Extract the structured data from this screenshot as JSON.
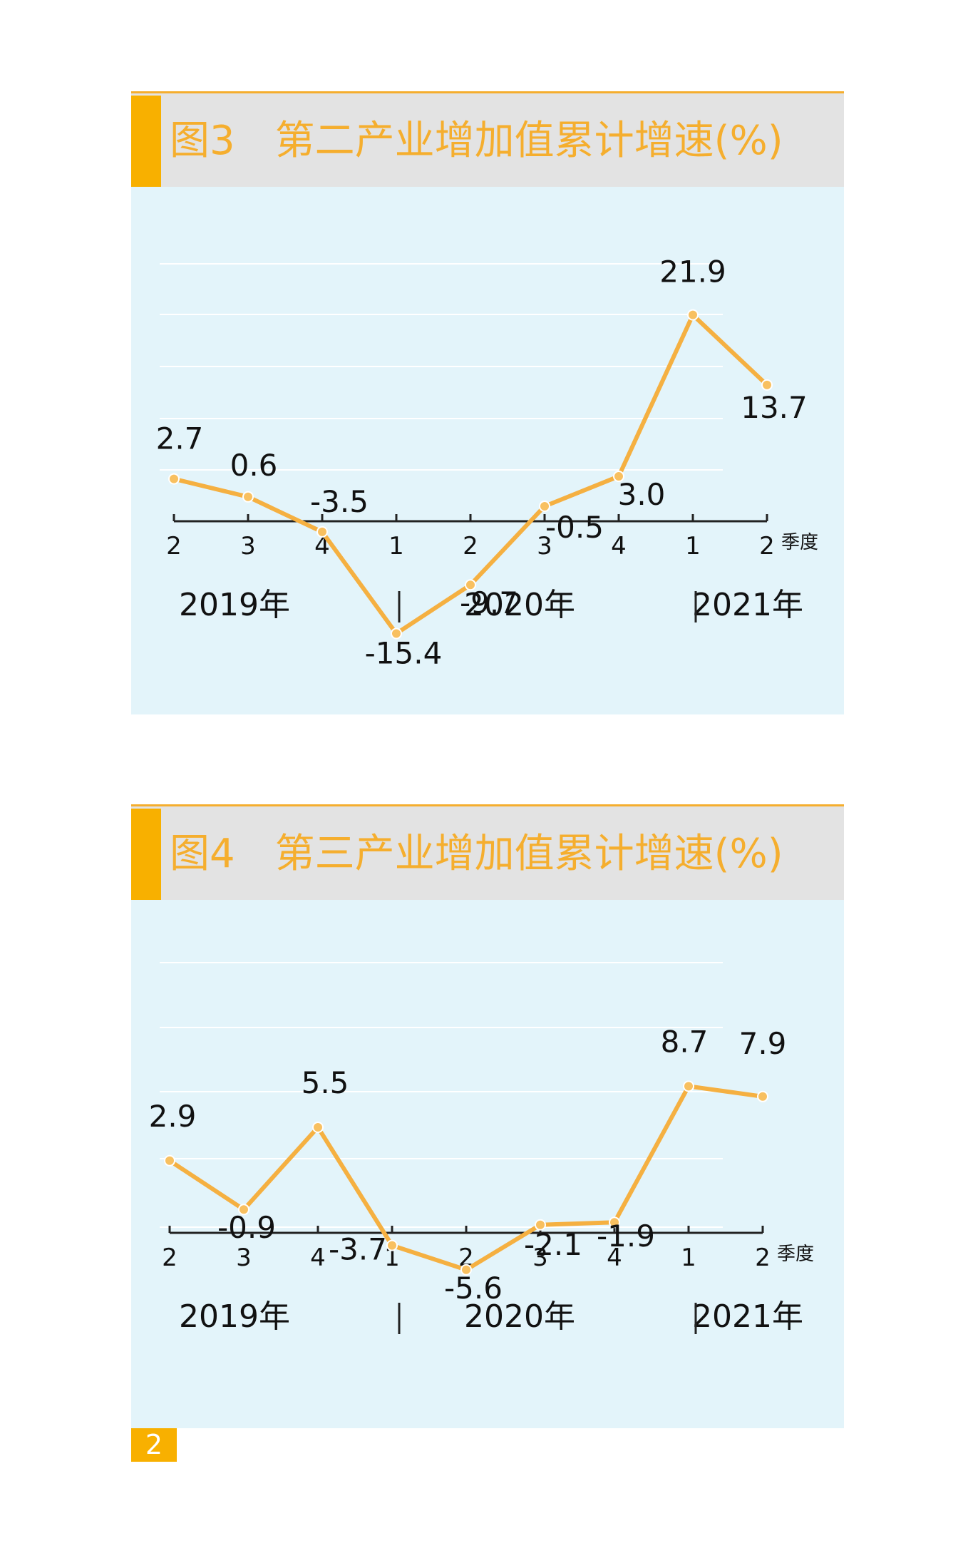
{
  "charts": [
    {
      "title_prefix": "图3",
      "title": "第二产业增加值累计增速(%)"
    },
    {
      "title_prefix": "图4",
      "title": "第三产业增加值累计增速(%)"
    }
  ],
  "page_number": "2",
  "colors": {
    "accent": "#f8b000",
    "line": "#f5b041",
    "title_text": "#f5ae2e",
    "title_bg": "#e3e3e3",
    "plot_bg": "#e3f4fa",
    "gridline": "#ffffff",
    "axis": "#222222"
  },
  "chart_data": [
    {
      "type": "line",
      "title": "第二产业增加值累计增速(%)",
      "categories": [
        "2",
        "3",
        "4",
        "1",
        "2",
        "3",
        "4",
        "1",
        "2"
      ],
      "x_unit": "季度",
      "years": [
        "2019年",
        "2020年",
        "2021年"
      ],
      "values": [
        2.7,
        0.6,
        -3.5,
        -15.4,
        -9.7,
        -0.5,
        3.0,
        21.9,
        13.7
      ],
      "value_labels": [
        "2.7",
        "0.6",
        "-3.5",
        "-15.4",
        "-9.7",
        "-0.5",
        "3.0",
        "21.9",
        "13.7"
      ],
      "ylim": [
        -25,
        25
      ],
      "grid": true,
      "legend": "none"
    },
    {
      "type": "line",
      "title": "第三产业增加值累计增速(%)",
      "categories": [
        "2",
        "3",
        "4",
        "1",
        "2",
        "3",
        "4",
        "1",
        "2"
      ],
      "x_unit": "季度",
      "years": [
        "2019年",
        "2020年",
        "2021年"
      ],
      "values": [
        2.9,
        -0.9,
        5.5,
        -3.7,
        -5.6,
        -2.1,
        -1.9,
        8.7,
        7.9
      ],
      "value_labels": [
        "2.9",
        "-0.9",
        "5.5",
        "-3.7",
        "-5.6",
        "-2.1",
        "-1.9",
        "8.7",
        "7.9"
      ],
      "ylim": [
        -12,
        12
      ],
      "grid": true,
      "legend": "none"
    }
  ]
}
